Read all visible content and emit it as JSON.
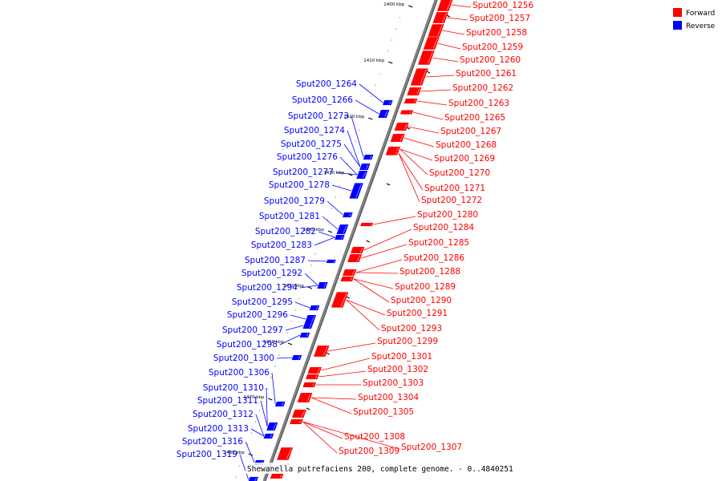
{
  "caption": "Shewanella putrefaciens 200, complete genome. - 0..4840251",
  "legend": [
    {
      "label": "Forward",
      "color": "#ff0000"
    },
    {
      "label": "Reverse",
      "color": "#0000ff"
    }
  ],
  "colors": {
    "forward": "#ff0000",
    "reverse": "#0000ff",
    "backbone": "#808080"
  },
  "ticks": [
    "1400 kbp",
    "1410 kbp",
    "1420 kbp",
    "1430 kbp",
    "1440 kbp",
    "1450 kbp",
    "1460 kbp",
    "1470 kbp",
    "1480 kbp"
  ],
  "forward_genes": [
    "Sput200_1256",
    "Sput200_1257",
    "Sput200_1258",
    "Sput200_1259",
    "Sput200_1260",
    "Sput200_1261",
    "Sput200_1262",
    "Sput200_1263",
    "Sput200_1265",
    "Sput200_1267",
    "Sput200_1268",
    "Sput200_1269",
    "Sput200_1270",
    "Sput200_1271",
    "Sput200_1272",
    "Sput200_1280",
    "Sput200_1284",
    "Sput200_1285",
    "Sput200_1286",
    "Sput200_1288",
    "Sput200_1289",
    "Sput200_1290",
    "Sput200_1291",
    "Sput200_1293",
    "Sput200_1299",
    "Sput200_1301",
    "Sput200_1302",
    "Sput200_1303",
    "Sput200_1304",
    "Sput200_1305",
    "Sput200_1308",
    "Sput200_1307",
    "Sput200_1309"
  ],
  "reverse_genes": [
    "Sput200_1264",
    "Sput200_1266",
    "Sput200_1273",
    "Sput200_1274",
    "Sput200_1275",
    "Sput200_1276",
    "Sput200_1277",
    "Sput200_1278",
    "Sput200_1279",
    "Sput200_1281",
    "Sput200_1282",
    "Sput200_1283",
    "Sput200_1287",
    "Sput200_1292",
    "Sput200_1294",
    "Sput200_1295",
    "Sput200_1296",
    "Sput200_1297",
    "Sput200_1298",
    "Sput200_1300",
    "Sput200_1306",
    "Sput200_1310",
    "Sput200_1311",
    "Sput200_1312",
    "Sput200_1313",
    "Sput200_1316",
    "Sput200_1319"
  ]
}
